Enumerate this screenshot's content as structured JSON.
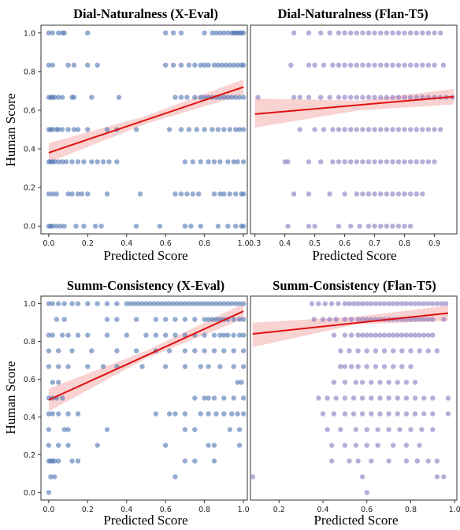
{
  "figure": {
    "ylabel_left": "Human Score"
  },
  "chart_data": [
    {
      "type": "scatter",
      "title": "Dial-Naturalness (X-Eval)",
      "xlabel": "Predicted Score",
      "ylabel": "Human Score",
      "xlim": [
        -0.04,
        1.02
      ],
      "ylim": [
        -0.04,
        1.04
      ],
      "xticks": [
        0.0,
        0.2,
        0.4,
        0.6,
        0.8,
        1.0
      ],
      "yticks": [
        0.0,
        0.2,
        0.4,
        0.6,
        0.8,
        1.0
      ],
      "point_color": "#4f74b3",
      "levels": [
        0,
        0.1667,
        0.3333,
        0.5,
        0.6667,
        0.8333,
        1.0
      ],
      "points": {
        "1.0": [
          0.0,
          0.02,
          0.05,
          0.07,
          0.08,
          0.2,
          0.6,
          0.64,
          0.68,
          0.8,
          0.84,
          0.86,
          0.88,
          0.9,
          0.92,
          0.94,
          0.95,
          0.96,
          0.97,
          0.98,
          0.99,
          1.0
        ],
        "0.8333": [
          0.0,
          0.02,
          0.1,
          0.13,
          0.2,
          0.25,
          0.6,
          0.64,
          0.68,
          0.72,
          0.75,
          0.78,
          0.8,
          0.82,
          0.85,
          0.87,
          0.89,
          0.91,
          0.93,
          0.95,
          0.97,
          0.99,
          1.0
        ],
        "0.6667": [
          0.0,
          0.01,
          0.02,
          0.03,
          0.05,
          0.07,
          0.12,
          0.13,
          0.22,
          0.36,
          0.65,
          0.68,
          0.71,
          0.75,
          0.78,
          0.8,
          0.82,
          0.84,
          0.86,
          0.88,
          0.9,
          0.92,
          0.94,
          0.96,
          0.98,
          1.0
        ],
        "0.5": [
          0.0,
          0.01,
          0.02,
          0.04,
          0.05,
          0.07,
          0.1,
          0.13,
          0.15,
          0.2,
          0.3,
          0.35,
          0.45,
          0.62,
          0.68,
          0.72,
          0.76,
          0.8,
          0.84,
          0.87,
          0.9,
          0.93,
          0.96,
          0.98,
          1.0
        ],
        "0.3333": [
          0.0,
          0.01,
          0.02,
          0.03,
          0.05,
          0.07,
          0.09,
          0.12,
          0.15,
          0.18,
          0.22,
          0.25,
          0.28,
          0.31,
          0.35,
          0.7,
          0.74,
          0.78,
          0.82,
          0.85,
          0.88,
          0.92,
          0.95,
          0.97,
          1.0
        ],
        "0.1667": [
          0.0,
          0.02,
          0.04,
          0.1,
          0.12,
          0.15,
          0.17,
          0.2,
          0.3,
          0.47,
          0.65,
          0.68,
          0.71,
          0.74,
          0.77,
          0.85,
          0.88,
          0.9,
          0.93,
          0.96,
          0.99,
          1.0
        ],
        "0": [
          0.0,
          0.01,
          0.02,
          0.04,
          0.06,
          0.08,
          0.14,
          0.18,
          0.24,
          0.27,
          0.45,
          0.57,
          0.7,
          0.73,
          0.78,
          0.87,
          0.92,
          0.96,
          0.99,
          1.0
        ]
      },
      "fit_line": {
        "x": [
          0.0,
          1.0
        ],
        "y": [
          0.38,
          0.72
        ]
      },
      "ci_band": {
        "x": [
          0.0,
          0.5,
          1.0
        ],
        "lower": [
          0.33,
          0.53,
          0.68
        ],
        "upper": [
          0.43,
          0.57,
          0.76
        ]
      },
      "line_color": "#e01010",
      "band_color": "#f4a6a6"
    },
    {
      "type": "scatter",
      "title": "Dial-Naturalness (Flan-T5)",
      "xlabel": "Predicted Score",
      "ylabel": "",
      "xlim": [
        0.285,
        0.975
      ],
      "ylim": [
        -0.04,
        1.04
      ],
      "xticks": [
        0.3,
        0.4,
        0.5,
        0.6,
        0.7,
        0.8,
        0.9
      ],
      "yticks": [],
      "point_color": "#8877c0",
      "levels": [
        0,
        0.1667,
        0.3333,
        0.5,
        0.6667,
        0.8333,
        1.0
      ],
      "points": {
        "1.0": [
          0.43,
          0.48,
          0.52,
          0.55,
          0.58,
          0.6,
          0.62,
          0.64,
          0.66,
          0.68,
          0.7,
          0.72,
          0.74,
          0.76,
          0.78,
          0.8,
          0.82,
          0.84,
          0.86,
          0.88,
          0.9,
          0.92
        ],
        "0.8333": [
          0.42,
          0.48,
          0.5,
          0.53,
          0.56,
          0.58,
          0.6,
          0.62,
          0.64,
          0.66,
          0.68,
          0.7,
          0.72,
          0.74,
          0.76,
          0.78,
          0.8,
          0.82,
          0.84,
          0.86,
          0.88,
          0.9,
          0.93
        ],
        "0.6667": [
          0.31,
          0.43,
          0.45,
          0.48,
          0.52,
          0.55,
          0.58,
          0.6,
          0.62,
          0.64,
          0.66,
          0.68,
          0.7,
          0.72,
          0.74,
          0.76,
          0.78,
          0.8,
          0.82,
          0.84,
          0.86,
          0.88,
          0.9,
          0.92,
          0.94,
          0.96
        ],
        "0.5": [
          0.45,
          0.5,
          0.53,
          0.56,
          0.58,
          0.6,
          0.62,
          0.64,
          0.66,
          0.68,
          0.7,
          0.72,
          0.74,
          0.76,
          0.78,
          0.8,
          0.82,
          0.84,
          0.86,
          0.88,
          0.9,
          0.92
        ],
        "0.3333": [
          0.4,
          0.41,
          0.48,
          0.52,
          0.56,
          0.58,
          0.6,
          0.62,
          0.64,
          0.66,
          0.68,
          0.7,
          0.72,
          0.74,
          0.76,
          0.78,
          0.8,
          0.82,
          0.84,
          0.86,
          0.88,
          0.9
        ],
        "0.1667": [
          0.43,
          0.48,
          0.55,
          0.6,
          0.64,
          0.66,
          0.68,
          0.7,
          0.72,
          0.74,
          0.76,
          0.78,
          0.8,
          0.82,
          0.84,
          0.86
        ],
        "0": [
          0.41,
          0.48,
          0.5,
          0.58,
          0.62,
          0.65,
          0.68,
          0.7,
          0.72,
          0.74,
          0.76,
          0.78,
          0.8,
          0.82
        ]
      },
      "fit_line": {
        "x": [
          0.3,
          0.965
        ],
        "y": [
          0.58,
          0.67
        ]
      },
      "ci_band": {
        "x": [
          0.3,
          0.65,
          0.965
        ],
        "lower": [
          0.51,
          0.6,
          0.63
        ],
        "upper": [
          0.66,
          0.65,
          0.71
        ]
      },
      "line_color": "#e01010",
      "band_color": "#f4a6a6"
    },
    {
      "type": "scatter",
      "title": "Summ-Consistency (X-Eval)",
      "xlabel": "Predicted Score",
      "ylabel": "Human Score",
      "xlim": [
        -0.04,
        1.02
      ],
      "ylim": [
        -0.04,
        1.04
      ],
      "xticks": [
        0.0,
        0.2,
        0.4,
        0.6,
        0.8,
        1.0
      ],
      "yticks": [
        0.0,
        0.2,
        0.4,
        0.6,
        0.8,
        1.0
      ],
      "point_color": "#4f74b3",
      "levels": [
        0,
        0.0833,
        0.1667,
        0.25,
        0.3333,
        0.4167,
        0.5,
        0.5833,
        0.6667,
        0.75,
        0.8333,
        0.9167,
        1.0
      ],
      "points": {
        "1.0": [
          0.0,
          0.02,
          0.05,
          0.08,
          0.12,
          0.15,
          0.2,
          0.25,
          0.3,
          0.35,
          0.4,
          0.42,
          0.44,
          0.46,
          0.48,
          0.5,
          0.52,
          0.54,
          0.56,
          0.58,
          0.6,
          0.62,
          0.64,
          0.66,
          0.68,
          0.7,
          0.72,
          0.74,
          0.76,
          0.78,
          0.8,
          0.82,
          0.84,
          0.86,
          0.88,
          0.9,
          0.92,
          0.94,
          0.96,
          0.98,
          1.0
        ],
        "0.9167": [
          0.04,
          0.08,
          0.3,
          0.35,
          0.45,
          0.55,
          0.6,
          0.65,
          0.7,
          0.75,
          0.8,
          0.82,
          0.84,
          0.86,
          0.88,
          0.9,
          0.92,
          0.95,
          0.98,
          1.0
        ],
        "0.8333": [
          0.0,
          0.02,
          0.07,
          0.1,
          0.15,
          0.2,
          0.3,
          0.4,
          0.5,
          0.55,
          0.6,
          0.65,
          0.7,
          0.75,
          0.8,
          0.85,
          0.88,
          0.9,
          0.92,
          0.95,
          0.98,
          1.0
        ],
        "0.75": [
          0.0,
          0.05,
          0.12,
          0.22,
          0.35,
          0.45,
          0.55,
          0.62,
          0.7,
          0.75,
          0.8,
          0.85,
          0.9,
          0.95,
          1.0
        ],
        "0.6667": [
          0.0,
          0.05,
          0.1,
          0.2,
          0.28,
          0.35,
          0.48,
          0.6,
          0.7,
          0.78,
          0.82,
          0.88,
          0.95,
          1.0
        ],
        "0.5833": [
          0.02,
          0.05,
          0.97,
          0.99
        ],
        "0.5": [
          0.0,
          0.02,
          0.04,
          0.07,
          0.75,
          0.8,
          0.82,
          0.85,
          0.9,
          0.95,
          1.0
        ],
        "0.4167": [
          0.0,
          0.02,
          0.05,
          0.1,
          0.15,
          0.55,
          0.62,
          0.65,
          0.7,
          0.78,
          0.82,
          0.86,
          0.9,
          0.94,
          0.97,
          1.0
        ],
        "0.3333": [
          0.0,
          0.08,
          0.1,
          0.3,
          0.7,
          0.75,
          0.93,
          0.98
        ],
        "0.25": [
          0.0,
          0.05,
          0.1,
          0.25,
          0.6,
          0.82,
          0.85,
          0.98
        ],
        "0.1667": [
          0.0,
          0.01,
          0.02,
          0.03,
          0.05,
          0.12,
          0.15,
          0.7,
          0.75,
          0.85
        ],
        "0.0833": [
          0.01,
          0.03,
          0.65
        ],
        "0": [
          0.0
        ]
      },
      "fit_line": {
        "x": [
          0.0,
          1.0
        ],
        "y": [
          0.49,
          0.96
        ]
      },
      "ci_band": {
        "x": [
          0.0,
          0.5,
          1.0
        ],
        "lower": [
          0.43,
          0.71,
          0.92
        ],
        "upper": [
          0.55,
          0.75,
          1.0
        ]
      },
      "line_color": "#e01010",
      "band_color": "#f4a6a6"
    },
    {
      "type": "scatter",
      "title": "Summ-Consistency (Flan-T5)",
      "xlabel": "Predicted Score",
      "ylabel": "",
      "xlim": [
        0.07,
        1.01
      ],
      "ylim": [
        -0.04,
        1.04
      ],
      "xticks": [
        0.2,
        0.4,
        0.6,
        0.8,
        1.0
      ],
      "yticks": [],
      "point_color": "#8877c0",
      "levels": [
        0,
        0.0833,
        0.1667,
        0.25,
        0.3333,
        0.4167,
        0.5,
        0.5833,
        0.6667,
        0.75,
        0.8333,
        0.9167,
        1.0
      ],
      "points": {
        "1.0": [
          0.35,
          0.38,
          0.41,
          0.44,
          0.47,
          0.5,
          0.52,
          0.54,
          0.56,
          0.58,
          0.6,
          0.62,
          0.64,
          0.66,
          0.68,
          0.7,
          0.72,
          0.74,
          0.76,
          0.78,
          0.8,
          0.82,
          0.84,
          0.86,
          0.88,
          0.9,
          0.92,
          0.94,
          0.96
        ],
        "0.9167": [
          0.36,
          0.4,
          0.43,
          0.46,
          0.5,
          0.53,
          0.56,
          0.58,
          0.6,
          0.62,
          0.64,
          0.66,
          0.68,
          0.7,
          0.72,
          0.74,
          0.76,
          0.78,
          0.8,
          0.82,
          0.84,
          0.86,
          0.88,
          0.9,
          0.95
        ],
        "0.8333": [
          0.45,
          0.5,
          0.53,
          0.56,
          0.58,
          0.6,
          0.62,
          0.64,
          0.66,
          0.68,
          0.7,
          0.72,
          0.74,
          0.76,
          0.78,
          0.8,
          0.82,
          0.84,
          0.86,
          0.88,
          0.9
        ],
        "0.75": [
          0.48,
          0.52,
          0.56,
          0.6,
          0.64,
          0.68,
          0.72,
          0.76,
          0.8,
          0.84,
          0.88,
          0.92
        ],
        "0.6667": [
          0.48,
          0.5,
          0.53,
          0.56,
          0.6,
          0.64,
          0.68,
          0.72,
          0.76,
          0.8
        ],
        "0.5833": [
          0.45,
          0.5,
          0.55,
          0.58,
          0.62,
          0.66,
          0.7,
          0.74,
          0.78,
          0.82
        ],
        "0.5": [
          0.38,
          0.42,
          0.46,
          0.5,
          0.54,
          0.58,
          0.62,
          0.66,
          0.7,
          0.74,
          0.78,
          0.82,
          0.86,
          0.9,
          0.97
        ],
        "0.4167": [
          0.4,
          0.45,
          0.5,
          0.54,
          0.58,
          0.62,
          0.66,
          0.7,
          0.74,
          0.78,
          0.82,
          0.86,
          0.9,
          0.97
        ],
        "0.3333": [
          0.42,
          0.48,
          0.55,
          0.6,
          0.65,
          0.7,
          0.75,
          0.8,
          0.85,
          0.9
        ],
        "0.25": [
          0.44,
          0.5,
          0.55,
          0.6,
          0.65,
          0.72,
          0.78,
          0.84
        ],
        "0.1667": [
          0.44,
          0.52,
          0.56,
          0.62,
          0.7,
          0.78,
          0.83,
          0.88,
          0.92
        ],
        "0.0833": [
          0.08,
          0.58,
          0.92,
          0.95
        ],
        "0": [
          0.6
        ]
      },
      "fit_line": {
        "x": [
          0.08,
          0.97
        ],
        "y": [
          0.84,
          0.95
        ]
      },
      "ci_band": {
        "x": [
          0.08,
          0.55,
          0.97
        ],
        "lower": [
          0.77,
          0.89,
          0.91
        ],
        "upper": [
          0.9,
          0.93,
          0.99
        ]
      },
      "line_color": "#e01010",
      "band_color": "#f4a6a6"
    }
  ]
}
